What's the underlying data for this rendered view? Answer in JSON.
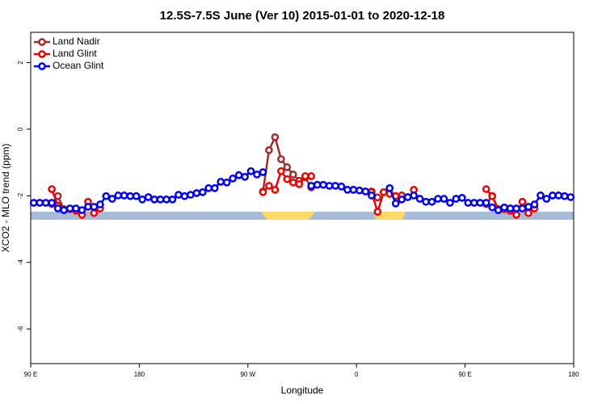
{
  "chart_data": {
    "type": "line",
    "title": "12.5S-7.5S June (Ver 10)   2015-01-01 to 2020-12-18",
    "x_label": "Longitude",
    "y_label": "XCO2 - MLO trend (ppm)",
    "xlim": [
      90,
      540
    ],
    "ylim": [
      -7.04,
      2.91
    ],
    "xticks": [
      {
        "value": 90,
        "label": "90 E"
      },
      {
        "value": 180,
        "label": "180"
      },
      {
        "value": 270,
        "label": "90 W"
      },
      {
        "value": 360,
        "label": "0"
      },
      {
        "value": 450,
        "label": "90 E"
      },
      {
        "value": 540,
        "label": "180"
      }
    ],
    "yticks": [
      2,
      0,
      -2,
      -4,
      -6
    ],
    "legend": "upper left",
    "series": [
      {
        "name": "Land Nadir",
        "color": "#a52a2a",
        "x": [
          107.5,
          112.5,
          117.5,
          122.5,
          282.5,
          287.5,
          292.5,
          297.5,
          302.5,
          307.5,
          312.5,
          317.5,
          322.5,
          327.5,
          372.5,
          377.5,
          382.5,
          467.5,
          472.5,
          477.5
        ],
        "values": [
          -2.25,
          -2.01,
          -2.4,
          null,
          -1.87,
          -0.63,
          -0.24,
          -0.9,
          -1.14,
          -1.36,
          -1.55,
          -1.45,
          -1.75,
          null,
          -1.87,
          -2.05,
          null,
          -2.25,
          -2.01,
          -2.4
        ]
      },
      {
        "name": "Land Glint",
        "color": "#ee0000",
        "x": [
          107.5,
          112.5,
          117.5,
          122.5,
          127.5,
          132.5,
          137.5,
          142.5,
          147.5,
          152.5,
          282.5,
          287.5,
          292.5,
          297.5,
          302.5,
          307.5,
          312.5,
          317.5,
          322.5,
          327.5,
          372.5,
          377.5,
          382.5,
          387.5,
          392.5,
          397.5,
          402.5,
          407.5,
          412.5,
          467.5,
          472.5,
          477.5,
          482.5,
          487.5,
          492.5,
          497.5,
          502.5,
          507.5
        ],
        "values": [
          -1.8,
          -2.3,
          -2.43,
          -2.4,
          -2.45,
          -2.57,
          -2.18,
          -2.52,
          -2.38,
          null,
          -1.89,
          -1.7,
          -1.82,
          -1.26,
          -1.5,
          -1.6,
          -1.65,
          -1.41,
          -1.41,
          null,
          -1.89,
          -2.48,
          -1.89,
          -1.94,
          -2.01,
          -1.99,
          null,
          -1.82,
          null,
          -1.8,
          -2.01,
          -2.43,
          -2.4,
          -2.45,
          -2.57,
          -2.18,
          -2.52,
          -2.38
        ]
      },
      {
        "name": "Ocean Glint",
        "color": "#0000ee",
        "x": [
          92.5,
          97.5,
          102.5,
          107.5,
          112.5,
          117.5,
          122.5,
          127.5,
          132.5,
          137.5,
          142.5,
          147.5,
          152.5,
          157.5,
          162.5,
          167.5,
          172.5,
          177.5,
          182.5,
          187.5,
          192.5,
          197.5,
          202.5,
          207.5,
          212.5,
          217.5,
          222.5,
          227.5,
          232.5,
          237.5,
          242.5,
          247.5,
          252.5,
          257.5,
          262.5,
          267.5,
          272.5,
          277.5,
          282.5,
          287.5,
          292.5,
          297.5,
          302.5,
          307.5,
          312.5,
          317.5,
          322.5,
          327.5,
          332.5,
          337.5,
          342.5,
          347.5,
          352.5,
          357.5,
          362.5,
          367.5,
          372.5,
          377.5,
          382.5,
          387.5,
          392.5,
          397.5,
          402.5,
          407.5,
          412.5,
          417.5,
          422.5,
          427.5,
          432.5,
          437.5,
          442.5,
          447.5,
          452.5,
          457.5,
          462.5,
          467.5,
          472.5,
          477.5,
          482.5,
          487.5,
          492.5,
          497.5,
          502.5,
          507.5,
          512.5,
          517.5,
          522.5,
          527.5,
          532.5,
          537.5
        ],
        "values": [
          -2.21,
          -2.21,
          -2.21,
          -2.21,
          -2.38,
          -2.43,
          -2.38,
          -2.38,
          -2.43,
          -2.33,
          -2.33,
          -2.26,
          -2.01,
          -2.09,
          -1.99,
          -1.99,
          -2.01,
          -2.01,
          -2.11,
          -2.04,
          -2.11,
          -2.11,
          -2.11,
          -2.11,
          -1.97,
          -2.01,
          -1.97,
          -1.92,
          -1.89,
          -1.77,
          -1.77,
          -1.58,
          -1.6,
          -1.48,
          -1.38,
          -1.43,
          -1.26,
          -1.36,
          -1.29,
          null,
          null,
          null,
          null,
          null,
          null,
          null,
          -1.7,
          -1.67,
          -1.67,
          -1.7,
          -1.7,
          -1.72,
          -1.82,
          -1.82,
          -1.84,
          -1.87,
          -1.99,
          null,
          null,
          -1.77,
          -2.23,
          -2.11,
          -2.04,
          -1.99,
          -2.09,
          -2.18,
          -2.18,
          -2.09,
          -2.09,
          -2.21,
          -2.09,
          -2.06,
          -2.21,
          -2.21,
          -2.21,
          -2.21,
          -2.35,
          -2.43,
          -2.35,
          -2.38,
          -2.38,
          -2.38,
          -2.33,
          -2.26,
          -1.99,
          -2.09,
          -1.99,
          -1.99,
          -2.01,
          -2.04
        ]
      }
    ]
  }
}
